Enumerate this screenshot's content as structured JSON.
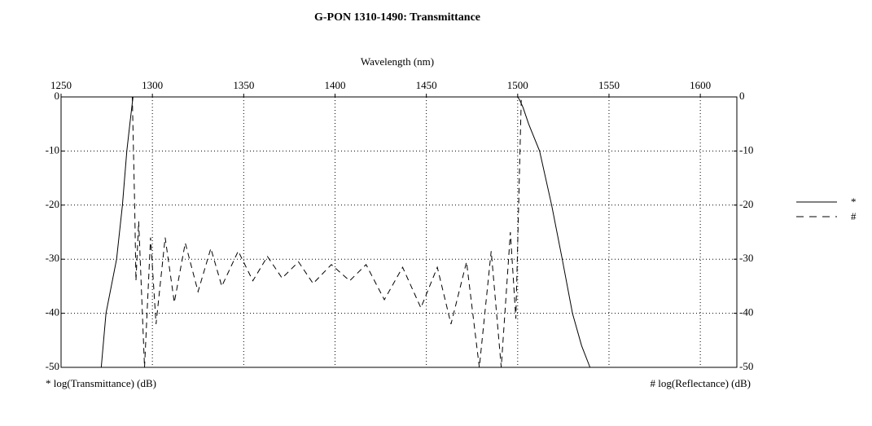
{
  "chart_data": {
    "type": "line",
    "title": "G-PON 1310-1490: Transmittance",
    "xlabel": "Wavelength (nm)",
    "ylabel": "* log(Transmittance) (dB)",
    "y2label": "# log(Reflectance) (dB)",
    "xlim": [
      1250,
      1620
    ],
    "xticks": [
      1250,
      1300,
      1350,
      1400,
      1450,
      1500,
      1550,
      1600
    ],
    "ylim": [
      -50,
      0
    ],
    "yticks": [
      0,
      -10,
      -20,
      -30,
      -40,
      -50
    ],
    "y2lim": [
      -50,
      0
    ],
    "y2ticks": [
      0,
      -10,
      -20,
      -30,
      -40,
      -50
    ],
    "grid": true,
    "legend": "right",
    "series": [
      {
        "name": "*",
        "color": "#000000",
        "line_style": "solid",
        "x": [
          1272,
          1274.6,
          1280.4,
          1283.6,
          1286,
          1288,
          1289.4,
          1300,
          1400,
          1500,
          1501,
          1503,
          1506,
          1512,
          1518.6,
          1524.4,
          1530,
          1535,
          1539.6
        ],
        "values": [
          -50,
          -40,
          -30,
          -20,
          -10,
          -4,
          0,
          0,
          0,
          0,
          -0.5,
          -2,
          -5,
          -10,
          -20,
          -30,
          -40,
          -46,
          -50
        ]
      },
      {
        "name": "#",
        "color": "#000000",
        "line_style": "dashed",
        "axis": "y2",
        "x": [
          1283,
          1289,
          1290.3,
          1291,
          1292.5,
          1295.7,
          1299,
          1302,
          1307,
          1312,
          1318,
          1325,
          1332,
          1338,
          1347,
          1355,
          1363,
          1371,
          1380,
          1388,
          1398,
          1408,
          1417,
          1427,
          1437,
          1447,
          1456,
          1463.5,
          1472,
          1479,
          1485.5,
          1491,
          1496,
          1499,
          1502,
          1509.6
        ],
        "values": [
          0,
          0,
          -20,
          -34,
          -23,
          -50,
          -26,
          -42,
          -26,
          -38,
          -27,
          -36,
          -28,
          -35,
          -28.5,
          -34,
          -29.5,
          -33.5,
          -30.5,
          -34.5,
          -31,
          -34,
          -31,
          -37.5,
          -31.5,
          -39,
          -31.5,
          -42,
          -30.5,
          -50,
          -28.5,
          -50,
          -25,
          -41,
          0,
          0
        ]
      }
    ]
  }
}
